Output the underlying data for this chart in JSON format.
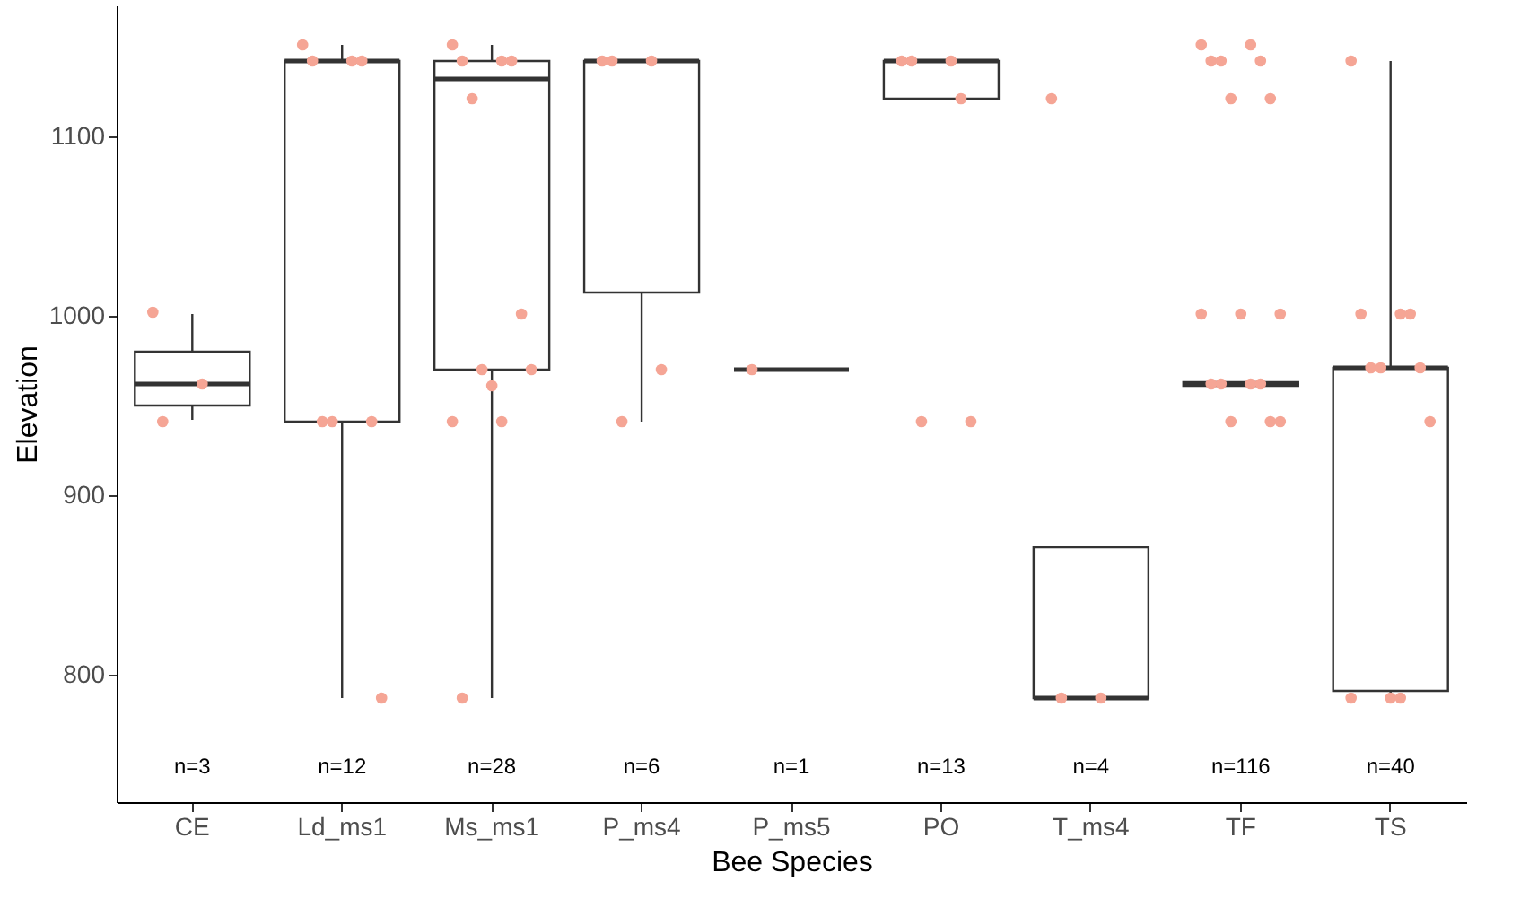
{
  "chart_data": {
    "type": "box",
    "color": "#333333",
    "xlabel": "Bee Species",
    "ylabel": "Elevation",
    "categories": [
      "CE",
      "Ld_ms1",
      "Ms_ms1",
      "P_ms4",
      "P_ms5",
      "PO",
      "T_ms4",
      "TF",
      "TS"
    ],
    "boxes": [
      {
        "low": 942,
        "q1": 950,
        "median": 962,
        "q3": 980,
        "high": 1001
      },
      {
        "low": 787,
        "q1": 941,
        "median": 1142,
        "q3": 1142,
        "high": 1151
      },
      {
        "low": 787,
        "q1": 970,
        "median": 1132,
        "q3": 1142,
        "high": 1151
      },
      {
        "low": 941,
        "q1": 1013,
        "median": 1142,
        "q3": 1142,
        "high": 1142
      },
      {
        "low": 970,
        "q1": 970,
        "median": 970,
        "q3": 970,
        "high": 970
      },
      {
        "low": 1121,
        "q1": 1121,
        "median": 1142,
        "q3": 1142,
        "high": 1142
      },
      {
        "low": 787,
        "q1": 787,
        "median": 787,
        "q3": 871,
        "high": 871
      },
      {
        "low": 961,
        "q1": 961,
        "median": 962,
        "q3": 963,
        "high": 963
      },
      {
        "low": 787,
        "q1": 791,
        "median": 971,
        "q3": 971,
        "high": 1142
      }
    ],
    "series": [
      {
        "type": "scatter",
        "color": "#f5a595",
        "x": [
          "CE",
          "CE",
          "CE",
          "Ld_ms1",
          "Ld_ms1",
          "Ld_ms1",
          "Ld_ms1",
          "Ld_ms1",
          "Ld_ms1",
          "Ld_ms1",
          "Ld_ms1",
          "Ms_ms1",
          "Ms_ms1",
          "Ms_ms1",
          "Ms_ms1",
          "Ms_ms1",
          "Ms_ms1",
          "Ms_ms1",
          "Ms_ms1",
          "Ms_ms1",
          "Ms_ms1",
          "Ms_ms1",
          "Ms_ms1",
          "P_ms4",
          "P_ms4",
          "P_ms4",
          "P_ms4",
          "P_ms4",
          "P_ms5",
          "PO",
          "PO",
          "PO",
          "PO",
          "PO",
          "PO",
          "T_ms4",
          "T_ms4",
          "T_ms4",
          "TF",
          "TF",
          "TF",
          "TF",
          "TF",
          "TF",
          "TF",
          "TF",
          "TF",
          "TF",
          "TF",
          "TF",
          "TF",
          "TF",
          "TF",
          "TF",
          "TF",
          "TS",
          "TS",
          "TS",
          "TS",
          "TS",
          "TS",
          "TS",
          "TS",
          "TS",
          "TS",
          "TS"
        ],
        "values": [
          1002,
          962,
          941,
          1151,
          1142,
          1142,
          1142,
          941,
          941,
          941,
          787,
          1151,
          1142,
          1142,
          1142,
          1121,
          1001,
          970,
          970,
          961,
          941,
          941,
          787,
          1142,
          1142,
          1142,
          970,
          941,
          970,
          1142,
          1142,
          1142,
          1121,
          941,
          941,
          1121,
          787,
          787,
          1151,
          1151,
          1142,
          1142,
          1142,
          1121,
          1121,
          1001,
          1001,
          1001,
          962,
          962,
          962,
          962,
          941,
          941,
          941,
          1142,
          1001,
          1001,
          1001,
          971,
          971,
          971,
          941,
          787,
          787,
          787
        ]
      }
    ],
    "annotations": [
      "n=3",
      "n=12",
      "n=28",
      "n=6",
      "n=1",
      "n=13",
      "n=4",
      "n=116",
      "n=40"
    ],
    "ylim": [
      729,
      1173
    ],
    "yticks": [
      800,
      900,
      1000,
      1100
    ]
  }
}
